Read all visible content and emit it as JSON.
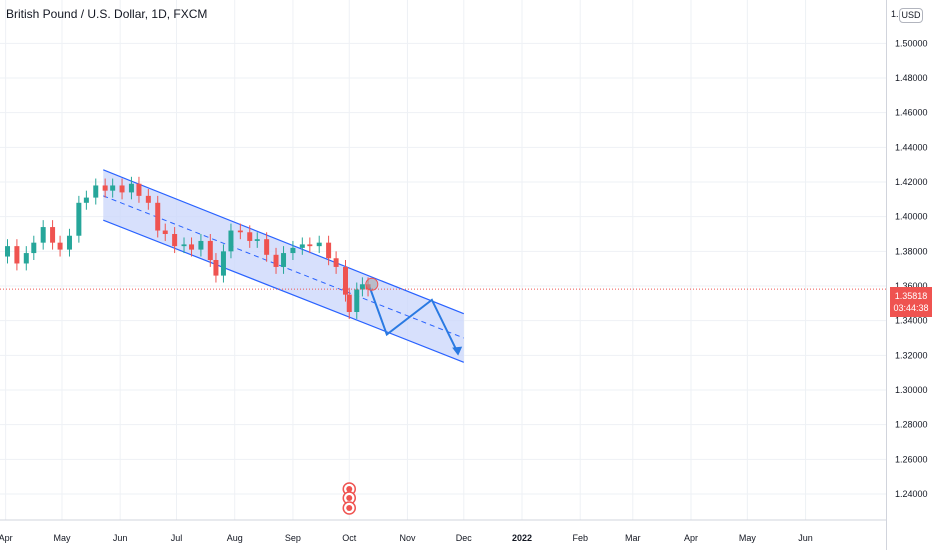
{
  "header": {
    "symbol_title": "British Pound / U.S. Dollar, 1D, FXCM"
  },
  "price_axis": {
    "currency": "USD",
    "top_label": "1.",
    "last_price": "1.35818",
    "countdown": "03:44:38"
  },
  "colors": {
    "up": "#26a69a",
    "down": "#ef5350",
    "channel_fill": "#c9d6fb",
    "channel_line": "#2962ff",
    "projection": "#2a7ae2",
    "grid": "#eef1f5",
    "last_price_line": "#ef5350"
  },
  "chart_data": {
    "type": "candlestick",
    "title": "British Pound / U.S. Dollar, 1D, FXCM",
    "ylabel": "USD",
    "ylim": [
      1.225,
      1.525
    ],
    "y_ticks": [
      "1.24000",
      "1.26000",
      "1.28000",
      "1.30000",
      "1.32000",
      "1.34000",
      "1.36000",
      "1.38000",
      "1.40000",
      "1.42000",
      "1.44000",
      "1.46000",
      "1.48000",
      "1.50000"
    ],
    "x_ticks": [
      "Apr",
      "May",
      "Jun",
      "Jul",
      "Aug",
      "Sep",
      "Oct",
      "Nov",
      "Dec",
      "2022",
      "Feb",
      "Mar",
      "Apr",
      "May",
      "Jun"
    ],
    "x_range": [
      "2021-03-29",
      "2022-06-30"
    ],
    "last_price": 1.35818,
    "closes": [
      {
        "date": "2021-03-29",
        "close": 1.377
      },
      {
        "date": "2021-04-02",
        "close": 1.383
      },
      {
        "date": "2021-04-07",
        "close": 1.373
      },
      {
        "date": "2021-04-12",
        "close": 1.379
      },
      {
        "date": "2021-04-16",
        "close": 1.385
      },
      {
        "date": "2021-04-21",
        "close": 1.394
      },
      {
        "date": "2021-04-26",
        "close": 1.385
      },
      {
        "date": "2021-04-30",
        "close": 1.381
      },
      {
        "date": "2021-05-05",
        "close": 1.389
      },
      {
        "date": "2021-05-10",
        "close": 1.408
      },
      {
        "date": "2021-05-14",
        "close": 1.411
      },
      {
        "date": "2021-05-19",
        "close": 1.418
      },
      {
        "date": "2021-05-24",
        "close": 1.415
      },
      {
        "date": "2021-05-28",
        "close": 1.418
      },
      {
        "date": "2021-06-02",
        "close": 1.414
      },
      {
        "date": "2021-06-07",
        "close": 1.419
      },
      {
        "date": "2021-06-11",
        "close": 1.412
      },
      {
        "date": "2021-06-16",
        "close": 1.408
      },
      {
        "date": "2021-06-21",
        "close": 1.392
      },
      {
        "date": "2021-06-25",
        "close": 1.39
      },
      {
        "date": "2021-06-30",
        "close": 1.383
      },
      {
        "date": "2021-07-05",
        "close": 1.384
      },
      {
        "date": "2021-07-09",
        "close": 1.381
      },
      {
        "date": "2021-07-14",
        "close": 1.386
      },
      {
        "date": "2021-07-19",
        "close": 1.375
      },
      {
        "date": "2021-07-22",
        "close": 1.366
      },
      {
        "date": "2021-07-26",
        "close": 1.38
      },
      {
        "date": "2021-07-30",
        "close": 1.392
      },
      {
        "date": "2021-08-04",
        "close": 1.391
      },
      {
        "date": "2021-08-09",
        "close": 1.386
      },
      {
        "date": "2021-08-13",
        "close": 1.387
      },
      {
        "date": "2021-08-18",
        "close": 1.378
      },
      {
        "date": "2021-08-23",
        "close": 1.371
      },
      {
        "date": "2021-08-27",
        "close": 1.379
      },
      {
        "date": "2021-09-01",
        "close": 1.382
      },
      {
        "date": "2021-09-06",
        "close": 1.384
      },
      {
        "date": "2021-09-10",
        "close": 1.383
      },
      {
        "date": "2021-09-15",
        "close": 1.385
      },
      {
        "date": "2021-09-20",
        "close": 1.376
      },
      {
        "date": "2021-09-24",
        "close": 1.371
      },
      {
        "date": "2021-09-29",
        "close": 1.355
      },
      {
        "date": "2021-10-01",
        "close": 1.345
      },
      {
        "date": "2021-10-05",
        "close": 1.358
      },
      {
        "date": "2021-10-08",
        "close": 1.361
      },
      {
        "date": "2021-10-11",
        "close": 1.358
      }
    ],
    "channel": {
      "upper": [
        [
          "2021-05-23",
          1.427
        ],
        [
          "2021-12-01",
          1.344
        ]
      ],
      "middle": [
        [
          "2021-05-23",
          1.412
        ],
        [
          "2021-12-01",
          1.33
        ]
      ],
      "lower": [
        [
          "2021-05-23",
          1.398
        ],
        [
          "2021-12-01",
          1.316
        ]
      ]
    },
    "projection": [
      [
        "2021-10-12",
        1.359
      ],
      [
        "2021-10-21",
        1.332
      ],
      [
        "2021-11-14",
        1.352
      ],
      [
        "2021-11-28",
        1.321
      ]
    ],
    "marker": [
      "2021-10-13",
      1.361
    ],
    "event_markers_date": "2021-10-01"
  }
}
